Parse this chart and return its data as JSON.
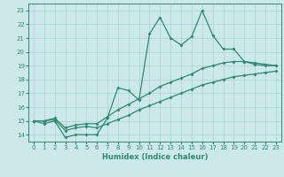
{
  "xlabel": "Humidex (Indice chaleur)",
  "x_values": [
    0,
    1,
    2,
    3,
    4,
    5,
    6,
    7,
    8,
    9,
    10,
    11,
    12,
    13,
    14,
    15,
    16,
    17,
    18,
    19,
    20,
    21,
    22,
    23
  ],
  "line_max": [
    15.0,
    14.8,
    15.0,
    13.8,
    14.0,
    14.0,
    14.0,
    15.2,
    17.4,
    17.2,
    16.5,
    21.3,
    22.5,
    21.0,
    20.5,
    21.1,
    23.0,
    21.2,
    20.2,
    20.2,
    19.3,
    19.1,
    19.0,
    19.0
  ],
  "line_mean": [
    15.0,
    15.0,
    15.2,
    14.5,
    14.7,
    14.8,
    14.8,
    15.3,
    15.8,
    16.2,
    16.6,
    17.0,
    17.5,
    17.8,
    18.1,
    18.4,
    18.8,
    19.0,
    19.2,
    19.3,
    19.3,
    19.2,
    19.1,
    19.0
  ],
  "line_min": [
    15.0,
    15.0,
    15.1,
    14.3,
    14.5,
    14.6,
    14.5,
    14.8,
    15.1,
    15.4,
    15.8,
    16.1,
    16.4,
    16.7,
    17.0,
    17.3,
    17.6,
    17.8,
    18.0,
    18.2,
    18.3,
    18.4,
    18.5,
    18.6
  ],
  "line_color": "#2e8b6e",
  "background_color": "#cde8ea",
  "grid_color": "#a8d0d4",
  "xlim": [
    -0.5,
    23.5
  ],
  "ylim": [
    13.5,
    23.5
  ],
  "yticks": [
    14,
    15,
    16,
    17,
    18,
    19,
    20,
    21,
    22,
    23
  ],
  "xticks": [
    0,
    1,
    2,
    3,
    4,
    5,
    6,
    7,
    8,
    9,
    10,
    11,
    12,
    13,
    14,
    15,
    16,
    17,
    18,
    19,
    20,
    21,
    22,
    23
  ]
}
